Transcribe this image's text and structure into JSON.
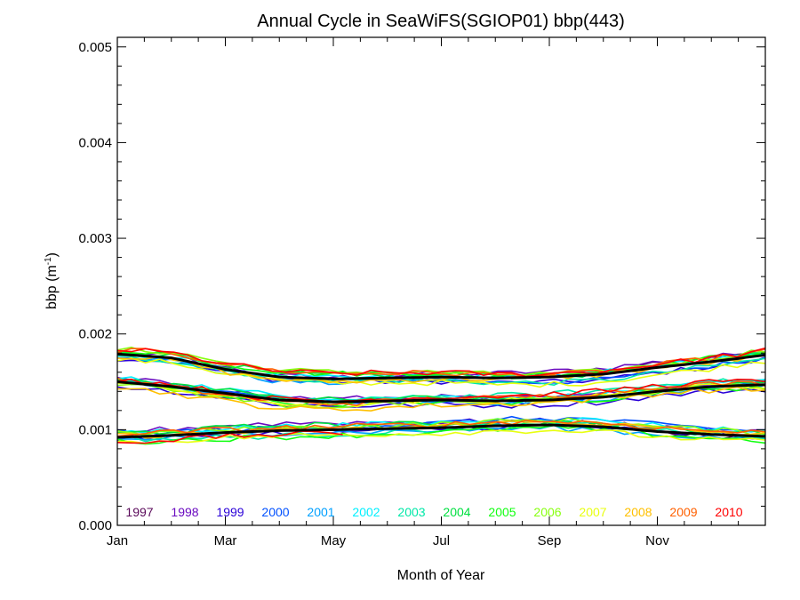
{
  "chart_data": {
    "type": "line",
    "title": "Annual Cycle in SeaWiFS(SGIOP01) bbp(443)",
    "xlabel": "Month of Year",
    "ylabel": {
      "base": "bbp (m",
      "sup": "-1",
      "close": ")"
    },
    "ylim": [
      0.0,
      0.0051
    ],
    "xlim": [
      1,
      13
    ],
    "x_ticks": [
      {
        "value": 1,
        "label": "Jan"
      },
      {
        "value": 3,
        "label": "Mar"
      },
      {
        "value": 5,
        "label": "May"
      },
      {
        "value": 7,
        "label": "Jul"
      },
      {
        "value": 9,
        "label": "Sep"
      },
      {
        "value": 11,
        "label": "Nov"
      }
    ],
    "y_ticks": [
      {
        "value": 0.0,
        "label": "0.000"
      },
      {
        "value": 0.001,
        "label": "0.001"
      },
      {
        "value": 0.002,
        "label": "0.002"
      },
      {
        "value": 0.003,
        "label": "0.003"
      },
      {
        "value": 0.004,
        "label": "0.004"
      },
      {
        "value": 0.005,
        "label": "0.005"
      }
    ],
    "grid": false,
    "legend_placement": "bottom inside plot, single row",
    "years": [
      {
        "label": "1997",
        "color": "#5a0a5a"
      },
      {
        "label": "1998",
        "color": "#6a0ac0"
      },
      {
        "label": "1999",
        "color": "#2a00d8"
      },
      {
        "label": "2000",
        "color": "#0050ff"
      },
      {
        "label": "2001",
        "color": "#00a0ff"
      },
      {
        "label": "2002",
        "color": "#00f0ff"
      },
      {
        "label": "2003",
        "color": "#00e8a8"
      },
      {
        "label": "2004",
        "color": "#00e040"
      },
      {
        "label": "2005",
        "color": "#10ff10"
      },
      {
        "label": "2006",
        "color": "#88ff10"
      },
      {
        "label": "2007",
        "color": "#e8ff10"
      },
      {
        "label": "2008",
        "color": "#ffc000"
      },
      {
        "label": "2009",
        "color": "#ff6000"
      },
      {
        "label": "2010",
        "color": "#ff0000"
      }
    ],
    "bands": [
      {
        "name": "upper",
        "x": [
          1,
          2,
          3,
          4,
          5,
          6,
          7,
          8,
          9,
          10,
          11,
          12,
          13
        ],
        "mean": [
          0.00179,
          0.00175,
          0.00163,
          0.00155,
          0.00153,
          0.00154,
          0.00155,
          0.00154,
          0.00155,
          0.00158,
          0.00165,
          0.00171,
          0.00178
        ]
      },
      {
        "name": "middle",
        "x": [
          1,
          2,
          3,
          4,
          5,
          6,
          7,
          8,
          9,
          10,
          11,
          12,
          13
        ],
        "mean": [
          0.0015,
          0.00145,
          0.00138,
          0.00131,
          0.00129,
          0.0013,
          0.00131,
          0.0013,
          0.00131,
          0.00134,
          0.0014,
          0.00145,
          0.00147
        ]
      },
      {
        "name": "lower",
        "x": [
          1,
          2,
          3,
          4,
          5,
          6,
          7,
          8,
          9,
          10,
          11,
          12,
          13
        ],
        "mean": [
          0.00092,
          0.00094,
          0.00097,
          0.00099,
          0.001,
          0.00101,
          0.00102,
          0.00104,
          0.00105,
          0.00103,
          0.00098,
          0.00095,
          0.00093
        ]
      }
    ],
    "mean_line_color": "#000000"
  }
}
